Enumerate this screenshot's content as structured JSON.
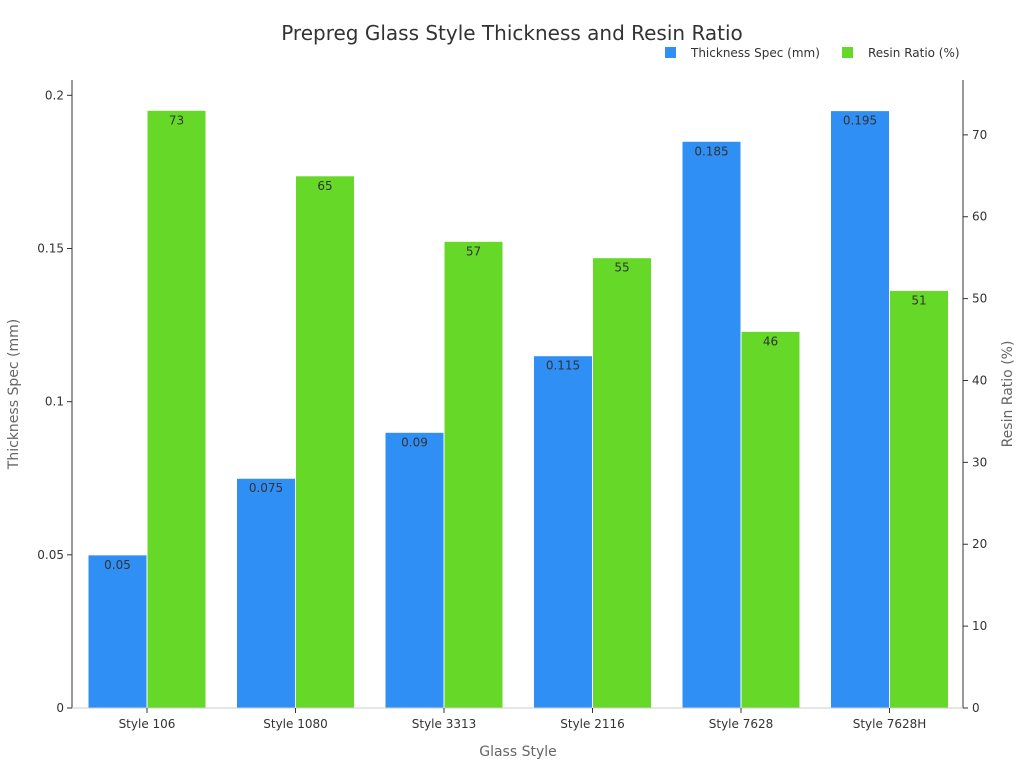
{
  "chart_data": {
    "type": "bar",
    "title": "Prepreg Glass Style Thickness and Resin Ratio",
    "xlabel": "Glass Style",
    "ylabel_left": "Thickness Spec (mm)",
    "ylabel_right": "Resin Ratio (%)",
    "categories": [
      "Style 106",
      "Style 1080",
      "Style 3313",
      "Style 2116",
      "Style 7628",
      "Style 7628H"
    ],
    "series": [
      {
        "name": "Thickness Spec (mm)",
        "axis": "left",
        "color": "#2f8ff5",
        "values": [
          0.05,
          0.075,
          0.09,
          0.115,
          0.185,
          0.195
        ],
        "labels": [
          "0.05",
          "0.075",
          "0.09",
          "0.115",
          "0.185",
          "0.195"
        ]
      },
      {
        "name": "Resin Ratio (%)",
        "axis": "right",
        "color": "#66d928",
        "values": [
          73,
          65,
          57,
          55,
          46,
          51
        ],
        "labels": [
          "73",
          "65",
          "57",
          "55",
          "46",
          "51"
        ]
      }
    ],
    "ylim_left": [
      0,
      0.205
    ],
    "ylim_right": [
      0,
      76.7
    ],
    "yticks_left": [
      0,
      0.05,
      0.1,
      0.15,
      0.2
    ],
    "yticks_left_labels": [
      "0",
      "0.05",
      "0.1",
      "0.15",
      "0.2"
    ],
    "yticks_right": [
      0,
      10,
      20,
      30,
      40,
      50,
      60,
      70
    ],
    "yticks_right_labels": [
      "0",
      "10",
      "20",
      "30",
      "40",
      "50",
      "60",
      "70"
    ],
    "grid": false,
    "legend_position": "top-right"
  }
}
